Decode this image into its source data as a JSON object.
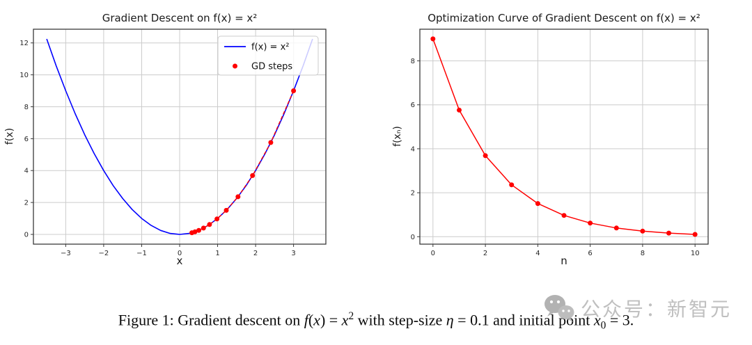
{
  "page": {
    "background": "#ffffff"
  },
  "watermark": {
    "icon": "wechat-icon",
    "text": "公众号：新智元",
    "color": "#b5b5b5"
  },
  "caption": {
    "full_text": "Figure 1: Gradient descent on f(x) = x² with step-size η = 0.1 and initial point x₀ = 3.",
    "parts": [
      {
        "s": "r",
        "t": "Figure 1: Gradient descent on "
      },
      {
        "s": "i",
        "t": "f"
      },
      {
        "s": "r",
        "t": "("
      },
      {
        "s": "i",
        "t": "x"
      },
      {
        "s": "r",
        "t": ") = "
      },
      {
        "s": "i",
        "t": "x"
      },
      {
        "s": "sup",
        "t": "2"
      },
      {
        "s": "r",
        "t": " with step-size "
      },
      {
        "s": "i",
        "t": "η"
      },
      {
        "s": "r",
        "t": " = 0.1 and initial point "
      },
      {
        "s": "i",
        "t": "x"
      },
      {
        "s": "sub",
        "t": "0"
      },
      {
        "s": "r",
        "t": " = 3."
      }
    ]
  },
  "chart_data": [
    {
      "type": "line",
      "title": "Gradient Descent on f(x) = x²",
      "xlabel": "x",
      "ylabel": "f(x)",
      "xlim": [
        -3.85,
        3.85
      ],
      "ylim": [
        -0.61,
        12.86
      ],
      "xticks": [
        -3,
        -2,
        -1,
        0,
        1,
        2,
        3
      ],
      "yticks": [
        0,
        2,
        4,
        6,
        8,
        10,
        12
      ],
      "grid": true,
      "grid_color": "#cccccc",
      "legend": {
        "position": "upper right",
        "entries": [
          {
            "label": "f(x) = x²",
            "marker": "line",
            "color": "#0000ff"
          },
          {
            "label": "GD steps",
            "marker": "dot",
            "color": "#ff0000"
          }
        ]
      },
      "series": [
        {
          "name": "f(x) = x²",
          "kind": "line",
          "color": "#0000ff",
          "width": 1.6,
          "x": [
            -3.5,
            -3.25,
            -3,
            -2.75,
            -2.5,
            -2.25,
            -2,
            -1.75,
            -1.5,
            -1.25,
            -1,
            -0.75,
            -0.5,
            -0.25,
            0,
            0.25,
            0.5,
            0.75,
            1,
            1.25,
            1.5,
            1.75,
            2,
            2.25,
            2.5,
            2.75,
            3,
            3.25,
            3.5
          ],
          "y": [
            12.25,
            10.5625,
            9,
            7.5625,
            6.25,
            5.0625,
            4,
            3.0625,
            2.25,
            1.5625,
            1,
            0.5625,
            0.25,
            0.0625,
            0,
            0.0625,
            0.25,
            0.5625,
            1,
            1.5625,
            2.25,
            3.0625,
            4,
            5.0625,
            6.25,
            7.5625,
            9,
            10.5625,
            12.25
          ]
        },
        {
          "name": "GD steps",
          "kind": "line+scatter",
          "color": "#ff0000",
          "width": 1.4,
          "dash": "5,3",
          "r": 3.5,
          "x": [
            3,
            2.4,
            1.92,
            1.536,
            1.2288,
            0.983,
            0.7864,
            0.6291,
            0.5033,
            0.4027,
            0.3221
          ],
          "y": [
            9,
            5.76,
            3.6864,
            2.3593,
            1.5099,
            0.9664,
            0.6185,
            0.3958,
            0.2533,
            0.1621,
            0.1038
          ]
        }
      ]
    },
    {
      "type": "line",
      "title": "Optimization Curve of Gradient Descent on f(x) = x²",
      "xlabel": "n",
      "ylabel": "f(xₙ)",
      "xlim": [
        -0.5,
        10.5
      ],
      "ylim": [
        -0.34,
        9.44
      ],
      "xticks": [
        0,
        2,
        4,
        6,
        8,
        10
      ],
      "yticks": [
        0,
        2,
        4,
        6,
        8
      ],
      "grid": true,
      "grid_color": "#cccccc",
      "series": [
        {
          "name": "f(xₙ)",
          "kind": "line+scatter",
          "color": "#ff0000",
          "width": 1.5,
          "r": 3.5,
          "x": [
            0,
            1,
            2,
            3,
            4,
            5,
            6,
            7,
            8,
            9,
            10
          ],
          "y": [
            9,
            5.76,
            3.6864,
            2.3593,
            1.5099,
            0.9664,
            0.6185,
            0.3958,
            0.2533,
            0.1621,
            0.1038
          ]
        }
      ]
    }
  ]
}
